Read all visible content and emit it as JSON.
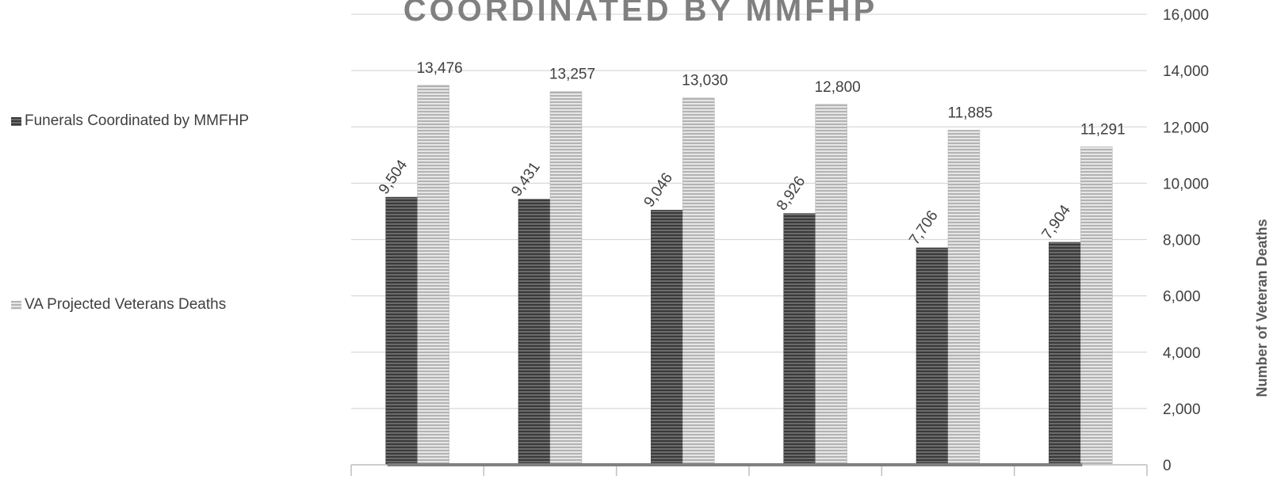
{
  "chart_data": {
    "type": "bar",
    "title": "COORDINATED BY MMFHP",
    "ylabel": "Number of Veteran Deaths",
    "ylim": [
      0,
      16000
    ],
    "yticks": [
      0,
      2000,
      4000,
      6000,
      8000,
      10000,
      12000,
      14000,
      16000
    ],
    "ytick_labels": [
      "0",
      "2,000",
      "4,000",
      "6,000",
      "8,000",
      "10,000",
      "12,000",
      "14,000",
      "16,000"
    ],
    "categories": [
      "",
      "",
      "",
      "",
      "",
      ""
    ],
    "grid": true,
    "legend_position": "left",
    "series": [
      {
        "name": "Funerals Coordinated by MMFHP",
        "values": [
          9504,
          9431,
          9046,
          8926,
          7706,
          7904
        ],
        "labels": [
          "9,504",
          "9,431",
          "9,046",
          "8,926",
          "7,706",
          "7,904"
        ],
        "color": "#555555"
      },
      {
        "name": "VA Projected Veterans Deaths",
        "values": [
          13476,
          13257,
          13030,
          12800,
          11885,
          11291
        ],
        "labels": [
          "13,476",
          "13,257",
          "13,030",
          "12,800",
          "11,885",
          "11,291"
        ],
        "color": "#bdbdbd"
      }
    ]
  }
}
